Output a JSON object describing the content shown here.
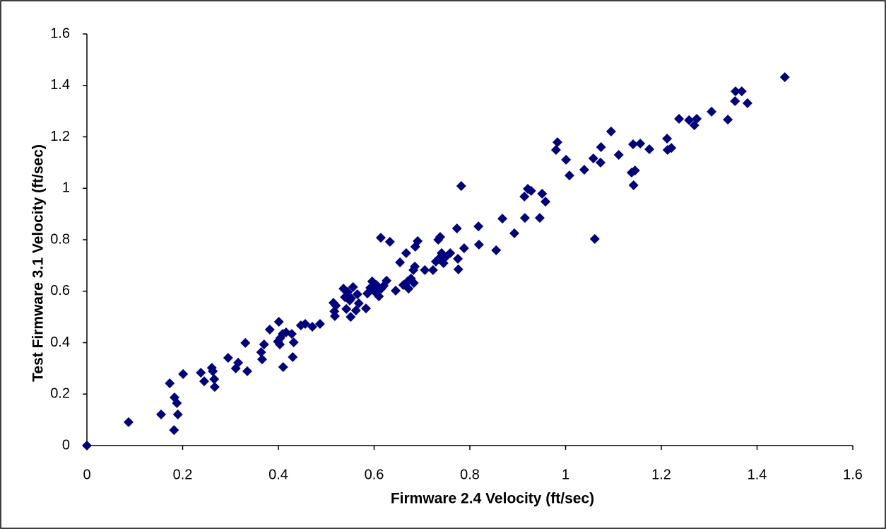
{
  "chart_data": {
    "type": "scatter",
    "xlabel": "Firmware 2.4 Velocity (ft/sec)",
    "ylabel": "Test Firmware 3.1 Velocity (ft/sec)",
    "color": "#000080",
    "xlim": [
      0,
      1.6
    ],
    "xticks": [
      0,
      0.2,
      0.4,
      0.6,
      0.8,
      1,
      1.2,
      1.4,
      1.6
    ],
    "ylim": [
      0,
      1.6
    ],
    "yticks": [
      0,
      0.2,
      0.4,
      0.6,
      0.8,
      1,
      1.2,
      1.4,
      1.6
    ],
    "x": [
      0,
      0.087,
      0.155,
      0.173,
      0.182,
      0.183,
      0.188,
      0.19,
      0.201,
      0.238,
      0.245,
      0.261,
      0.263,
      0.266,
      0.267,
      0.295,
      0.311,
      0.316,
      0.331,
      0.335,
      0.364,
      0.366,
      0.37,
      0.382,
      0.399,
      0.401,
      0.403,
      0.404,
      0.409,
      0.41,
      0.416,
      0.428,
      0.43,
      0.432,
      0.447,
      0.456,
      0.471,
      0.487,
      0.515,
      0.517,
      0.518,
      0.52,
      0.536,
      0.539,
      0.542,
      0.545,
      0.549,
      0.551,
      0.552,
      0.556,
      0.562,
      0.565,
      0.568,
      0.583,
      0.586,
      0.592,
      0.596,
      0.602,
      0.605,
      0.61,
      0.614,
      0.615,
      0.62,
      0.626,
      0.633,
      0.645,
      0.654,
      0.661,
      0.667,
      0.67,
      0.672,
      0.677,
      0.682,
      0.683,
      0.685,
      0.686,
      0.691,
      0.706,
      0.723,
      0.729,
      0.734,
      0.735,
      0.738,
      0.741,
      0.745,
      0.75,
      0.759,
      0.773,
      0.775,
      0.776,
      0.782,
      0.788,
      0.818,
      0.819,
      0.855,
      0.868,
      0.893,
      0.914,
      0.915,
      0.921,
      0.928,
      0.946,
      0.951,
      0.958,
      0.98,
      0.983,
      1.001,
      1.008,
      1.039,
      1.058,
      1.061,
      1.073,
      1.074,
      1.095,
      1.111,
      1.138,
      1.141,
      1.142,
      1.145,
      1.156,
      1.175,
      1.212,
      1.213,
      1.221,
      1.237,
      1.258,
      1.269,
      1.274,
      1.305,
      1.339,
      1.354,
      1.355,
      1.368,
      1.38,
      1.458
    ],
    "values": [
      0,
      0.091,
      0.121,
      0.242,
      0.06,
      0.187,
      0.165,
      0.121,
      0.278,
      0.283,
      0.25,
      0.302,
      0.289,
      0.258,
      0.228,
      0.341,
      0.3,
      0.322,
      0.399,
      0.289,
      0.363,
      0.335,
      0.393,
      0.451,
      0.404,
      0.481,
      0.393,
      0.418,
      0.434,
      0.305,
      0.44,
      0.434,
      0.344,
      0.401,
      0.467,
      0.473,
      0.462,
      0.473,
      0.555,
      0.522,
      0.503,
      0.544,
      0.61,
      0.577,
      0.531,
      0.597,
      0.564,
      0.5,
      0.572,
      0.616,
      0.525,
      0.588,
      0.553,
      0.533,
      0.591,
      0.613,
      0.638,
      0.597,
      0.624,
      0.58,
      0.808,
      0.61,
      0.621,
      0.641,
      0.792,
      0.602,
      0.712,
      0.624,
      0.748,
      0.638,
      0.61,
      0.649,
      0.682,
      0.632,
      0.696,
      0.773,
      0.795,
      0.682,
      0.682,
      0.715,
      0.8,
      0.726,
      0.811,
      0.748,
      0.709,
      0.734,
      0.748,
      0.844,
      0.726,
      0.685,
      1.009,
      0.767,
      0.852,
      0.781,
      0.759,
      0.882,
      0.825,
      0.968,
      0.885,
      0.998,
      0.99,
      0.885,
      0.979,
      0.948,
      1.149,
      1.179,
      1.111,
      1.05,
      1.072,
      1.116,
      0.803,
      1.1,
      1.16,
      1.221,
      1.13,
      1.061,
      1.171,
      1.012,
      1.069,
      1.174,
      1.152,
      1.193,
      1.149,
      1.157,
      1.27,
      1.265,
      1.245,
      1.27,
      1.298,
      1.267,
      1.339,
      1.377,
      1.377,
      1.331,
      1.432
    ]
  }
}
